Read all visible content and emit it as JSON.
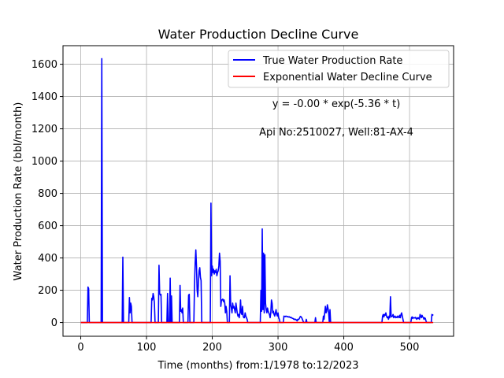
{
  "chart_data": {
    "type": "line",
    "title": "Water Production Decline Curve",
    "xlabel": "Time (months) from:1/1978 to:12/2023",
    "ylabel": "Water Production Rate (bbl/month)",
    "xlim": [
      -27,
      567
    ],
    "ylim": [
      -85,
      1715
    ],
    "xticks": [
      0,
      100,
      200,
      300,
      400,
      500
    ],
    "yticks": [
      0,
      200,
      400,
      600,
      800,
      1000,
      1200,
      1400,
      1600
    ],
    "grid": true,
    "legend_position": "top-right",
    "annotations": [
      "y = -0.00 * exp(-5.36 * t)",
      "Api No:2510027, Well:81-AX-4"
    ],
    "series": [
      {
        "name": "True Water Production Rate",
        "color": "#0000ff",
        "points": [
          [
            0,
            0
          ],
          [
            10,
            0
          ],
          [
            11,
            220
          ],
          [
            12,
            210
          ],
          [
            13,
            0
          ],
          [
            31,
            0
          ],
          [
            32,
            1635
          ],
          [
            33,
            0
          ],
          [
            63,
            0
          ],
          [
            64,
            405
          ],
          [
            65,
            0
          ],
          [
            73,
            0
          ],
          [
            74,
            155
          ],
          [
            75,
            60
          ],
          [
            76,
            120
          ],
          [
            77,
            100
          ],
          [
            78,
            0
          ],
          [
            107,
            0
          ],
          [
            108,
            150
          ],
          [
            109,
            140
          ],
          [
            110,
            180
          ],
          [
            111,
            160
          ],
          [
            112,
            120
          ],
          [
            113,
            0
          ],
          [
            118,
            0
          ],
          [
            119,
            355
          ],
          [
            120,
            180
          ],
          [
            121,
            170
          ],
          [
            122,
            175
          ],
          [
            123,
            0
          ],
          [
            131,
            0
          ],
          [
            132,
            180
          ],
          [
            133,
            0
          ],
          [
            135,
            0
          ],
          [
            136,
            275
          ],
          [
            137,
            0
          ],
          [
            138,
            165
          ],
          [
            139,
            0
          ],
          [
            150,
            0
          ],
          [
            151,
            230
          ],
          [
            152,
            70
          ],
          [
            153,
            80
          ],
          [
            154,
            60
          ],
          [
            155,
            90
          ],
          [
            156,
            0
          ],
          [
            163,
            0
          ],
          [
            164,
            170
          ],
          [
            165,
            175
          ],
          [
            166,
            0
          ],
          [
            172,
            0
          ],
          [
            173,
            230
          ],
          [
            174,
            370
          ],
          [
            175,
            450
          ],
          [
            176,
            350
          ],
          [
            177,
            200
          ],
          [
            178,
            160
          ],
          [
            179,
            250
          ],
          [
            180,
            320
          ],
          [
            181,
            340
          ],
          [
            182,
            280
          ],
          [
            183,
            260
          ],
          [
            184,
            0
          ],
          [
            197,
            0
          ],
          [
            198,
            740
          ],
          [
            199,
            290
          ],
          [
            200,
            350
          ],
          [
            201,
            310
          ],
          [
            202,
            330
          ],
          [
            203,
            300
          ],
          [
            204,
            320
          ],
          [
            205,
            310
          ],
          [
            206,
            330
          ],
          [
            207,
            290
          ],
          [
            208,
            310
          ],
          [
            209,
            320
          ],
          [
            210,
            350
          ],
          [
            211,
            430
          ],
          [
            212,
            380
          ],
          [
            213,
            100
          ],
          [
            214,
            140
          ],
          [
            215,
            140
          ],
          [
            216,
            145
          ],
          [
            217,
            130
          ],
          [
            218,
            140
          ],
          [
            219,
            120
          ],
          [
            220,
            60
          ],
          [
            221,
            100
          ],
          [
            222,
            70
          ],
          [
            223,
            0
          ],
          [
            226,
            0
          ],
          [
            227,
            290
          ],
          [
            228,
            110
          ],
          [
            229,
            90
          ],
          [
            230,
            60
          ],
          [
            231,
            120
          ],
          [
            232,
            90
          ],
          [
            233,
            100
          ],
          [
            234,
            80
          ],
          [
            235,
            60
          ],
          [
            236,
            120
          ],
          [
            237,
            90
          ],
          [
            238,
            60
          ],
          [
            239,
            40
          ],
          [
            240,
            50
          ],
          [
            241,
            30
          ],
          [
            242,
            60
          ],
          [
            243,
            140
          ],
          [
            244,
            60
          ],
          [
            245,
            50
          ],
          [
            246,
            100
          ],
          [
            247,
            40
          ],
          [
            248,
            30
          ],
          [
            249,
            30
          ],
          [
            250,
            60
          ],
          [
            251,
            40
          ],
          [
            252,
            30
          ],
          [
            253,
            20
          ],
          [
            254,
            0
          ],
          [
            273,
            0
          ],
          [
            274,
            200
          ],
          [
            275,
            70
          ],
          [
            276,
            580
          ],
          [
            277,
            80
          ],
          [
            278,
            430
          ],
          [
            279,
            60
          ],
          [
            280,
            420
          ],
          [
            281,
            120
          ],
          [
            282,
            80
          ],
          [
            283,
            60
          ],
          [
            284,
            90
          ],
          [
            285,
            70
          ],
          [
            286,
            60
          ],
          [
            287,
            50
          ],
          [
            288,
            30
          ],
          [
            289,
            60
          ],
          [
            290,
            140
          ],
          [
            291,
            120
          ],
          [
            292,
            60
          ],
          [
            293,
            70
          ],
          [
            294,
            50
          ],
          [
            295,
            40
          ],
          [
            296,
            60
          ],
          [
            297,
            80
          ],
          [
            298,
            50
          ],
          [
            299,
            40
          ],
          [
            300,
            60
          ],
          [
            301,
            30
          ],
          [
            302,
            20
          ],
          [
            303,
            0
          ],
          [
            308,
            0
          ],
          [
            309,
            40
          ],
          [
            310,
            38
          ],
          [
            311,
            36
          ],
          [
            312,
            40
          ],
          [
            313,
            38
          ],
          [
            314,
            35
          ],
          [
            315,
            37
          ],
          [
            316,
            34
          ],
          [
            317,
            36
          ],
          [
            318,
            33
          ],
          [
            319,
            30
          ],
          [
            320,
            32
          ],
          [
            321,
            28
          ],
          [
            322,
            26
          ],
          [
            323,
            25
          ],
          [
            324,
            20
          ],
          [
            325,
            22
          ],
          [
            326,
            18
          ],
          [
            327,
            20
          ],
          [
            328,
            15
          ],
          [
            329,
            10
          ],
          [
            330,
            20
          ],
          [
            331,
            18
          ],
          [
            332,
            22
          ],
          [
            333,
            30
          ],
          [
            334,
            38
          ],
          [
            335,
            36
          ],
          [
            336,
            30
          ],
          [
            337,
            20
          ],
          [
            338,
            10
          ],
          [
            339,
            0
          ],
          [
            342,
            0
          ],
          [
            343,
            20
          ],
          [
            344,
            0
          ],
          [
            356,
            0
          ],
          [
            357,
            30
          ],
          [
            358,
            0
          ],
          [
            368,
            0
          ],
          [
            369,
            40
          ],
          [
            370,
            20
          ],
          [
            371,
            60
          ],
          [
            372,
            100
          ],
          [
            373,
            60
          ],
          [
            374,
            70
          ],
          [
            375,
            110
          ],
          [
            376,
            90
          ],
          [
            377,
            60
          ],
          [
            378,
            0
          ],
          [
            379,
            80
          ],
          [
            380,
            0
          ],
          [
            458,
            0
          ],
          [
            459,
            40
          ],
          [
            460,
            50
          ],
          [
            461,
            35
          ],
          [
            462,
            50
          ],
          [
            463,
            45
          ],
          [
            464,
            60
          ],
          [
            465,
            40
          ],
          [
            466,
            30
          ],
          [
            467,
            35
          ],
          [
            468,
            20
          ],
          [
            469,
            40
          ],
          [
            470,
            30
          ],
          [
            471,
            160
          ],
          [
            472,
            40
          ],
          [
            473,
            35
          ],
          [
            474,
            40
          ],
          [
            475,
            50
          ],
          [
            476,
            30
          ],
          [
            477,
            35
          ],
          [
            478,
            40
          ],
          [
            479,
            30
          ],
          [
            480,
            35
          ],
          [
            481,
            30
          ],
          [
            482,
            40
          ],
          [
            483,
            35
          ],
          [
            484,
            30
          ],
          [
            485,
            45
          ],
          [
            486,
            30
          ],
          [
            487,
            50
          ],
          [
            488,
            60
          ],
          [
            489,
            40
          ],
          [
            490,
            20
          ],
          [
            491,
            0
          ],
          [
            502,
            0
          ],
          [
            503,
            30
          ],
          [
            504,
            35
          ],
          [
            505,
            25
          ],
          [
            506,
            30
          ],
          [
            507,
            30
          ],
          [
            508,
            28
          ],
          [
            509,
            32
          ],
          [
            510,
            25
          ],
          [
            511,
            20
          ],
          [
            512,
            30
          ],
          [
            513,
            25
          ],
          [
            514,
            30
          ],
          [
            515,
            20
          ],
          [
            516,
            50
          ],
          [
            517,
            40
          ],
          [
            518,
            30
          ],
          [
            519,
            45
          ],
          [
            520,
            35
          ],
          [
            521,
            30
          ],
          [
            522,
            20
          ],
          [
            523,
            30
          ],
          [
            524,
            25
          ],
          [
            525,
            10
          ],
          [
            526,
            0
          ],
          [
            533,
            0
          ],
          [
            534,
            50
          ],
          [
            535,
            45
          ],
          [
            536,
            50
          ]
        ]
      },
      {
        "name": "Exponential Water Decline Curve",
        "color": "#ff0000",
        "points": [
          [
            0,
            0
          ],
          [
            536,
            0
          ]
        ]
      }
    ]
  }
}
